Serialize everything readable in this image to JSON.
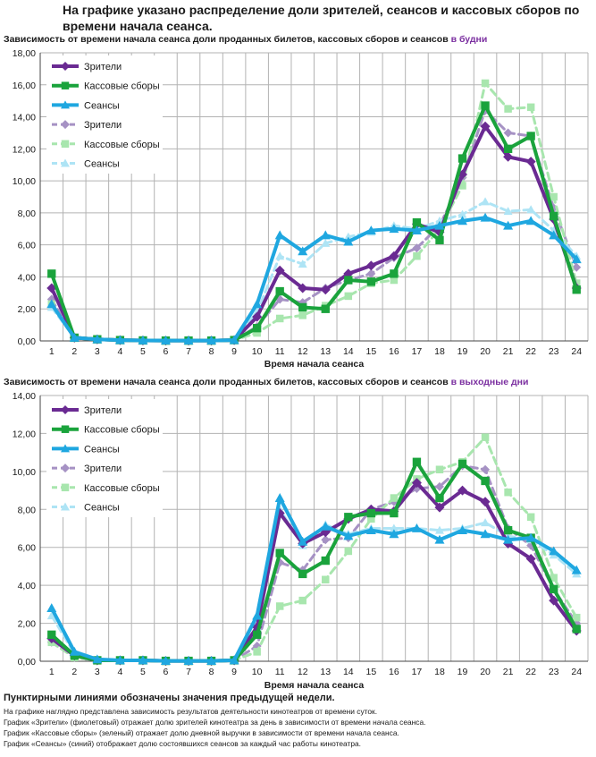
{
  "header": {
    "title": "На графике указано распределение доли зрителей, сеансов и кассовых сборов по времени начала сеанса."
  },
  "charts": [
    {
      "subtitle_main": "Зависимость от времени начала сеанса доли проданных билетов, кассовых сборов и сеансов",
      "subtitle_accent": "в будни"
    },
    {
      "subtitle_main": "Зависимость от времени начала сеанса доли проданных билетов, кассовых сборов и сеансов",
      "subtitle_accent": "в выходные дни"
    }
  ],
  "footer": {
    "note": "Пунктирными линиями обозначены значения предыдущей недели.",
    "lines": [
      "На графике наглядно представлена зависимость результатов деятельности кинотеатров от времени суток.",
      "График «Зрители» (фиолетовый)  отражает долю зрителей кинотеатра за день в зависимости от времени  начала сеанса.",
      "График «Кассовые сборы» (зеленый) отражает долю дневной выручки в зависимости от времени начала сеанса.",
      "График «Сеансы» (синий) отображает долю состоявшихся сеансов  за каждый час работы кинотеатра."
    ]
  },
  "colors": {
    "viewers": "#6a2a92",
    "box": "#1aa33c",
    "sessions": "#1fa7e0",
    "viewers_prev": "#a692c4",
    "box_prev": "#a8e6ae",
    "sessions_prev": "#aee4f5",
    "grid": "#b3b3b3"
  },
  "chart_data": [
    {
      "type": "line",
      "x": [
        1,
        2,
        3,
        4,
        5,
        6,
        7,
        8,
        9,
        10,
        11,
        12,
        13,
        14,
        15,
        16,
        17,
        18,
        19,
        20,
        21,
        22,
        23,
        24
      ],
      "xlabel": "Время начала сеанса",
      "ylim": [
        0,
        18
      ],
      "yticks": [
        "0,00",
        "2,00",
        "4,00",
        "6,00",
        "8,00",
        "10,00",
        "12,00",
        "14,00",
        "16,00",
        "18,00"
      ],
      "legend_position": "top-left",
      "series": [
        {
          "name": "Зрители",
          "style": "solid",
          "marker": "diamond",
          "color_key": "viewers",
          "values": [
            3.3,
            0.2,
            0.1,
            0.05,
            0.03,
            0.02,
            0.02,
            0.02,
            0.05,
            1.5,
            4.4,
            3.3,
            3.2,
            4.2,
            4.7,
            5.3,
            7.3,
            6.8,
            10.4,
            13.4,
            11.5,
            11.2,
            7.6,
            3.3
          ]
        },
        {
          "name": "Кассовые сборы",
          "style": "solid",
          "marker": "square",
          "color_key": "box",
          "values": [
            4.2,
            0.2,
            0.1,
            0.05,
            0.03,
            0.02,
            0.02,
            0.02,
            0.05,
            0.8,
            3.1,
            2.1,
            2.0,
            3.8,
            3.7,
            4.2,
            7.4,
            6.3,
            11.4,
            14.7,
            12.0,
            12.8,
            7.8,
            3.2
          ]
        },
        {
          "name": "Сеансы",
          "style": "solid",
          "marker": "triangle",
          "color_key": "sessions",
          "values": [
            2.3,
            0.2,
            0.1,
            0.05,
            0.03,
            0.02,
            0.02,
            0.02,
            0.05,
            2.3,
            6.6,
            5.6,
            6.6,
            6.2,
            6.9,
            7.0,
            6.9,
            7.2,
            7.5,
            7.7,
            7.2,
            7.5,
            6.6,
            5.1
          ]
        },
        {
          "name": "Зрители",
          "style": "dashed",
          "marker": "diamond",
          "color_key": "viewers_prev",
          "values": [
            2.6,
            0.2,
            0.1,
            0.05,
            0.03,
            0.02,
            0.02,
            0.02,
            0.05,
            0.9,
            2.6,
            2.4,
            3.3,
            3.8,
            4.2,
            5.2,
            5.8,
            7.2,
            10.2,
            14.4,
            13.0,
            12.8,
            8.3,
            4.6
          ]
        },
        {
          "name": "Кассовые сборы",
          "style": "dashed",
          "marker": "square",
          "color_key": "box_prev",
          "values": [
            2.3,
            0.2,
            0.1,
            0.05,
            0.03,
            0.02,
            0.02,
            0.02,
            0.05,
            0.5,
            1.4,
            1.6,
            2.2,
            2.8,
            3.6,
            3.8,
            5.3,
            7.0,
            9.7,
            16.1,
            14.5,
            14.6,
            9.0,
            3.6
          ]
        },
        {
          "name": "Сеансы",
          "style": "dashed",
          "marker": "triangle",
          "color_key": "sessions_prev",
          "values": [
            2.1,
            0.2,
            0.1,
            0.05,
            0.03,
            0.02,
            0.02,
            0.02,
            0.05,
            1.8,
            5.3,
            4.8,
            6.1,
            6.5,
            6.8,
            7.2,
            7.0,
            7.5,
            7.9,
            8.7,
            8.1,
            8.2,
            6.9,
            5.3
          ]
        }
      ]
    },
    {
      "type": "line",
      "x": [
        1,
        2,
        3,
        4,
        5,
        6,
        7,
        8,
        9,
        10,
        11,
        12,
        13,
        14,
        15,
        16,
        17,
        18,
        19,
        20,
        21,
        22,
        23,
        24
      ],
      "xlabel": "Время начала сеанса",
      "ylim": [
        0,
        14
      ],
      "yticks": [
        "0,00",
        "2,00",
        "4,00",
        "6,00",
        "8,00",
        "10,00",
        "12,00",
        "14,00"
      ],
      "legend_position": "top-left",
      "series": [
        {
          "name": "Зрители",
          "style": "solid",
          "marker": "diamond",
          "color_key": "viewers",
          "values": [
            1.2,
            0.3,
            0.05,
            0.05,
            0.05,
            0.02,
            0.02,
            0.02,
            0.05,
            1.8,
            7.8,
            6.2,
            6.8,
            7.5,
            8.0,
            7.9,
            9.4,
            8.1,
            9.0,
            8.4,
            6.2,
            5.4,
            3.2,
            1.6
          ]
        },
        {
          "name": "Кассовые сборы",
          "style": "solid",
          "marker": "square",
          "color_key": "box",
          "values": [
            1.4,
            0.3,
            0.05,
            0.05,
            0.05,
            0.02,
            0.02,
            0.02,
            0.05,
            1.4,
            5.7,
            4.6,
            5.3,
            7.6,
            7.8,
            7.8,
            10.5,
            8.6,
            10.4,
            9.5,
            6.9,
            6.5,
            3.8,
            1.7
          ]
        },
        {
          "name": "Сеансы",
          "style": "solid",
          "marker": "triangle",
          "color_key": "sessions",
          "values": [
            2.8,
            0.5,
            0.1,
            0.05,
            0.05,
            0.02,
            0.02,
            0.02,
            0.05,
            2.4,
            8.6,
            6.3,
            7.1,
            6.6,
            6.9,
            6.7,
            7.0,
            6.4,
            6.9,
            6.7,
            6.4,
            6.5,
            5.8,
            4.8
          ]
        },
        {
          "name": "Зрители",
          "style": "dashed",
          "marker": "diamond",
          "color_key": "viewers_prev",
          "values": [
            1.0,
            0.2,
            0.05,
            0.05,
            0.05,
            0.02,
            0.02,
            0.02,
            0.05,
            0.8,
            5.2,
            4.8,
            6.4,
            6.5,
            8.0,
            8.4,
            9.1,
            9.2,
            10.3,
            10.1,
            7.0,
            6.1,
            3.8,
            2.0
          ]
        },
        {
          "name": "Кассовые сборы",
          "style": "dashed",
          "marker": "square",
          "color_key": "box_prev",
          "values": [
            1.0,
            0.2,
            0.05,
            0.05,
            0.05,
            0.02,
            0.02,
            0.02,
            0.05,
            0.5,
            2.9,
            3.2,
            4.3,
            5.8,
            7.5,
            8.6,
            9.6,
            10.1,
            10.5,
            11.8,
            8.9,
            7.6,
            4.4,
            2.3
          ]
        },
        {
          "name": "Сеансы",
          "style": "dashed",
          "marker": "triangle",
          "color_key": "sessions_prev",
          "values": [
            2.4,
            0.4,
            0.1,
            0.05,
            0.05,
            0.02,
            0.02,
            0.02,
            0.05,
            1.8,
            8.0,
            6.1,
            7.2,
            6.7,
            7.0,
            7.0,
            7.0,
            6.9,
            7.0,
            7.3,
            6.6,
            6.4,
            5.6,
            4.6
          ]
        }
      ]
    }
  ]
}
